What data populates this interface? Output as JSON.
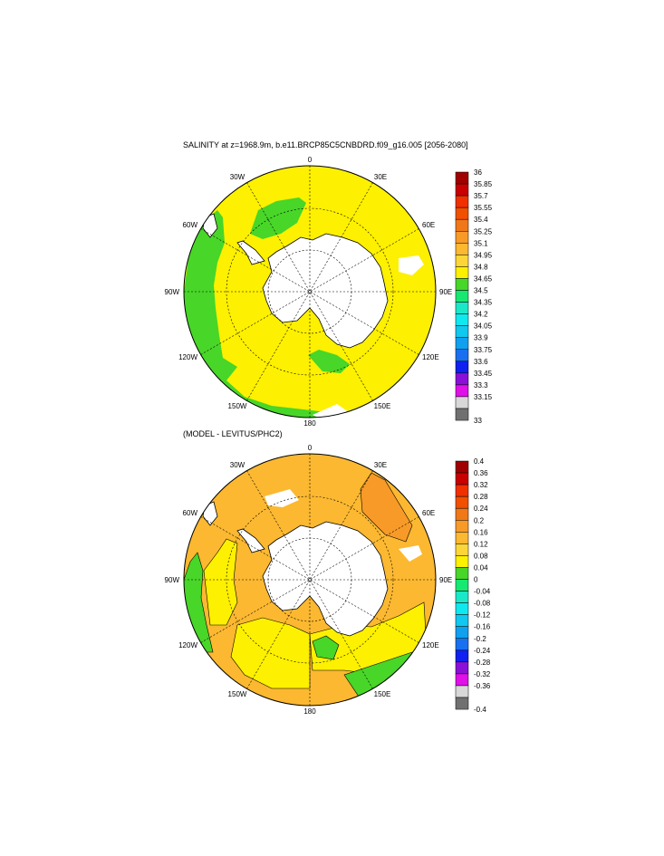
{
  "panel1": {
    "title": "SALINITY at z=1968.9m, b.e11.BRCP85C5CNBDRD.f09_g16.005 [2056-2080]",
    "lon_labels": [
      "0",
      "30E",
      "60E",
      "90E",
      "120E",
      "150E",
      "180",
      "150W",
      "120W",
      "90W",
      "60W",
      "30W"
    ],
    "colorbar": {
      "labels": [
        "36",
        "35.85",
        "35.7",
        "35.55",
        "35.4",
        "35.25",
        "35.1",
        "34.95",
        "34.8",
        "34.65",
        "34.5",
        "34.35",
        "34.2",
        "34.05",
        "33.9",
        "33.75",
        "33.6",
        "33.45",
        "33.3",
        "33.15",
        "33"
      ],
      "colors": [
        "#a00000",
        "#c80000",
        "#f03000",
        "#f05000",
        "#f07818",
        "#f89a28",
        "#fbb830",
        "#fcd638",
        "#fdf000",
        "#48d628",
        "#16e872",
        "#1ae8c8",
        "#10e8f0",
        "#10c8f0",
        "#10a0f0",
        "#1870f0",
        "#1020f0",
        "#8a10d8",
        "#e010e8",
        "#d8d8d8",
        "#707070"
      ]
    }
  },
  "panel2": {
    "title": "(MODEL - LEVITUS/PHC2)",
    "lon_labels": [
      "0",
      "30E",
      "60E",
      "90E",
      "120E",
      "150E",
      "180",
      "150W",
      "120W",
      "90W",
      "60W",
      "30W"
    ],
    "colorbar": {
      "labels": [
        "0.4",
        "0.36",
        "0.32",
        "0.28",
        "0.24",
        "0.2",
        "0.16",
        "0.12",
        "0.08",
        "0.04",
        "0",
        "-0.04",
        "-0.08",
        "-0.12",
        "-0.16",
        "-0.2",
        "-0.24",
        "-0.28",
        "-0.32",
        "-0.36",
        "-0.4"
      ],
      "colors": [
        "#a00000",
        "#c80000",
        "#f03000",
        "#f05000",
        "#f07818",
        "#f89a28",
        "#fbb830",
        "#fcd638",
        "#fdf000",
        "#48d628",
        "#16e872",
        "#1ae8c8",
        "#10e8f0",
        "#10c8f0",
        "#10a0f0",
        "#1870f0",
        "#1020f0",
        "#8a10d8",
        "#e010e8",
        "#d8d8d8",
        "#707070"
      ]
    }
  }
}
